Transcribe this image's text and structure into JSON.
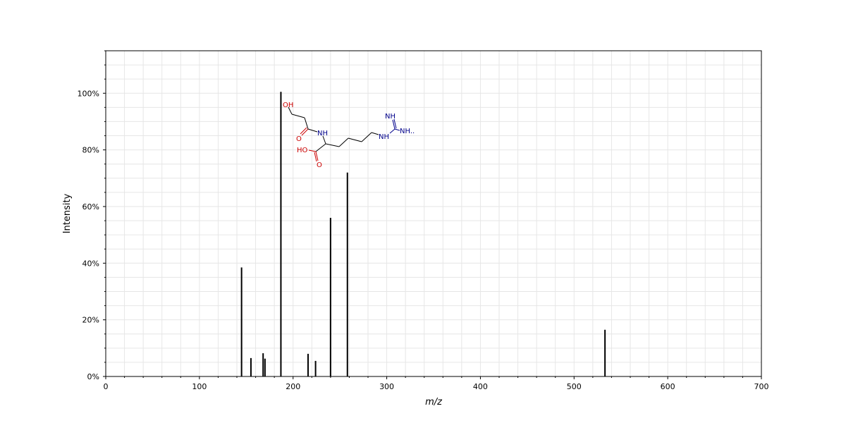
{
  "chart_data": {
    "type": "bar",
    "title": "",
    "xlabel": "m/z",
    "ylabel": "Intensity",
    "xlim": [
      0,
      700
    ],
    "ylim": [
      0,
      115
    ],
    "x_ticks": [
      0,
      100,
      200,
      300,
      400,
      500,
      600,
      700
    ],
    "y_ticks": [
      0,
      20,
      40,
      60,
      80,
      100
    ],
    "y_tick_suffix": "%",
    "grid": true,
    "peaks": [
      {
        "mz": 145,
        "intensity": 38.5
      },
      {
        "mz": 155,
        "intensity": 6.5
      },
      {
        "mz": 168,
        "intensity": 8.2
      },
      {
        "mz": 170,
        "intensity": 6.3
      },
      {
        "mz": 187,
        "intensity": 100.5
      },
      {
        "mz": 216,
        "intensity": 8.0
      },
      {
        "mz": 224,
        "intensity": 5.5
      },
      {
        "mz": 240,
        "intensity": 56.0
      },
      {
        "mz": 258,
        "intensity": 72.0
      },
      {
        "mz": 533,
        "intensity": 16.5
      }
    ]
  },
  "structure": {
    "labels": {
      "oh_top": "OH",
      "o_carbonyl": "O",
      "nh_amide": "NH",
      "ho_acid": "HO",
      "o_acid": "O",
      "nh_chain": "NH",
      "nh_imine": "NH",
      "nh2": "NH.."
    },
    "colors": {
      "oxygen": "#cc0000",
      "nitrogen": "#00008b",
      "bond": "#000000"
    }
  }
}
